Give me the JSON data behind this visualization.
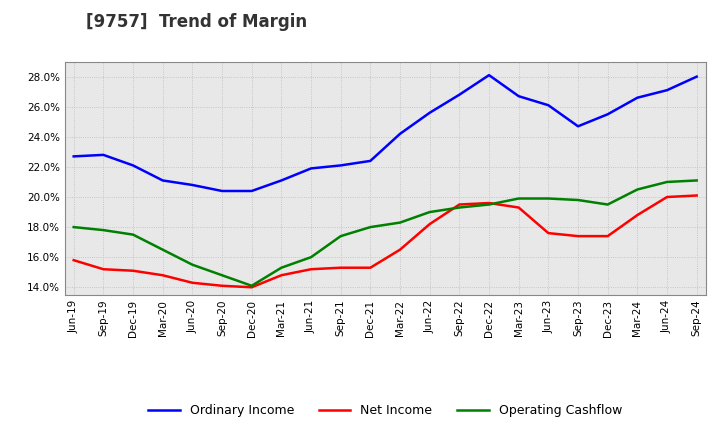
{
  "title": "[9757]  Trend of Margin",
  "x_labels": [
    "Jun-19",
    "Sep-19",
    "Dec-19",
    "Mar-20",
    "Jun-20",
    "Sep-20",
    "Dec-20",
    "Mar-21",
    "Jun-21",
    "Sep-21",
    "Dec-21",
    "Mar-22",
    "Jun-22",
    "Sep-22",
    "Dec-22",
    "Mar-23",
    "Jun-23",
    "Sep-23",
    "Dec-23",
    "Mar-24",
    "Jun-24",
    "Sep-24"
  ],
  "ordinary_income": [
    22.7,
    22.8,
    22.1,
    21.1,
    20.8,
    20.4,
    20.4,
    21.1,
    21.9,
    22.1,
    22.4,
    24.2,
    25.6,
    26.8,
    28.1,
    26.7,
    26.1,
    24.7,
    25.5,
    26.6,
    27.1,
    28.0
  ],
  "net_income": [
    15.8,
    15.2,
    15.1,
    14.8,
    14.3,
    14.1,
    14.0,
    14.8,
    15.2,
    15.3,
    15.3,
    16.5,
    18.2,
    19.5,
    19.6,
    19.3,
    17.6,
    17.4,
    17.4,
    18.8,
    20.0,
    20.1
  ],
  "operating_cashflow": [
    18.0,
    17.8,
    17.5,
    16.5,
    15.5,
    14.8,
    14.1,
    15.3,
    16.0,
    17.4,
    18.0,
    18.3,
    19.0,
    19.3,
    19.5,
    19.9,
    19.9,
    19.8,
    19.5,
    20.5,
    21.0,
    21.1
  ],
  "color_ordinary": "#0000FF",
  "color_net": "#FF0000",
  "color_cashflow": "#008000",
  "ylim_min": 13.5,
  "ylim_max": 29.0,
  "yticks": [
    14.0,
    16.0,
    18.0,
    20.0,
    22.0,
    24.0,
    26.0,
    28.0
  ],
  "background_color": "#FFFFFF",
  "plot_bg_color": "#E8E8E8",
  "grid_color": "#BBBBBB",
  "title_fontsize": 12,
  "axis_fontsize": 7.5,
  "legend_fontsize": 9
}
